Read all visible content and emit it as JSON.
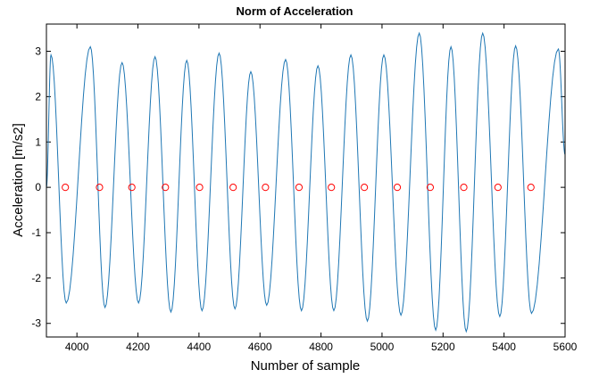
{
  "chart_data": {
    "type": "line",
    "title": "Norm of Acceleration",
    "xlabel": "Number of sample",
    "ylabel": "Acceleration [m/s2]",
    "xlim": [
      3900,
      5600
    ],
    "ylim": [
      -3.3,
      3.6
    ],
    "xticks": [
      4000,
      4200,
      4400,
      4600,
      4800,
      5000,
      5200,
      5400,
      5600
    ],
    "yticks": [
      -3,
      -2,
      -1,
      0,
      1,
      2,
      3
    ],
    "grid": false,
    "legend": "none",
    "series": [
      {
        "color": "#1f77b4",
        "style": "line",
        "start": [
          3900,
          0.0
        ],
        "peaks": [
          [
            3915,
            2.92
          ],
          [
            3965,
            -2.55
          ],
          [
            4044,
            3.1
          ],
          [
            4092,
            -2.65
          ],
          [
            4148,
            2.75
          ],
          [
            4202,
            -2.55
          ],
          [
            4256,
            2.88
          ],
          [
            4308,
            -2.75
          ],
          [
            4360,
            2.8
          ],
          [
            4410,
            -2.72
          ],
          [
            4466,
            2.96
          ],
          [
            4518,
            -2.68
          ],
          [
            4570,
            2.55
          ],
          [
            4622,
            -2.6
          ],
          [
            4684,
            2.82
          ],
          [
            4736,
            -2.72
          ],
          [
            4790,
            2.68
          ],
          [
            4842,
            -2.72
          ],
          [
            4898,
            2.92
          ],
          [
            4952,
            -2.95
          ],
          [
            5006,
            2.92
          ],
          [
            5062,
            -2.82
          ],
          [
            5122,
            3.4
          ],
          [
            5176,
            -3.15
          ],
          [
            5226,
            3.1
          ],
          [
            5276,
            -3.18
          ],
          [
            5330,
            3.4
          ],
          [
            5386,
            -2.85
          ],
          [
            5438,
            3.12
          ],
          [
            5490,
            -2.78
          ],
          [
            5578,
            3.05
          ]
        ],
        "end": [
          5600,
          0.72
        ]
      },
      {
        "color": "#ff0000",
        "style": "circle-markers",
        "x": [
          3962,
          4074,
          4180,
          4290,
          4402,
          4512,
          4618,
          4728,
          4834,
          4942,
          5050,
          5158,
          5268,
          5380,
          5488
        ],
        "y": [
          0,
          0,
          0,
          0,
          0,
          0,
          0,
          0,
          0,
          0,
          0,
          0,
          0,
          0,
          0
        ]
      }
    ]
  }
}
